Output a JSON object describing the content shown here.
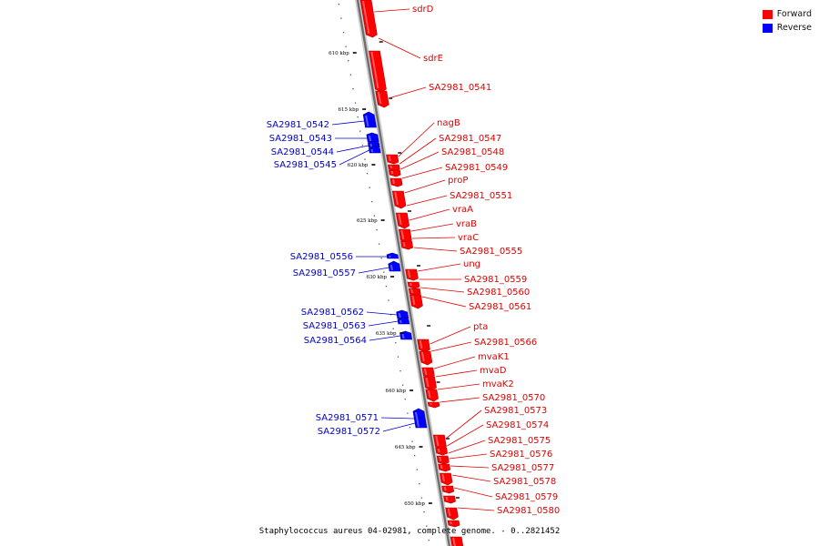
{
  "legend": {
    "forward": {
      "label": "Forward",
      "color": "#ff0000"
    },
    "reverse": {
      "label": "Reverse",
      "color": "#0000ff"
    }
  },
  "caption": "Staphylococcus aureus 04-02981, complete genome. - 0..2821452",
  "ticks": [
    "610 kbp",
    "615 kbp",
    "620 kbp",
    "625 kbp",
    "630 kbp",
    "635 kbp",
    "640 kbp",
    "645 kbp",
    "650 kbp"
  ],
  "genes_forward": [
    "sdrD",
    "sdrE",
    "SA2981_0541",
    "nagB",
    "SA2981_0547",
    "SA2981_0548",
    "SA2981_0549",
    "proP",
    "SA2981_0551",
    "vraA",
    "vraB",
    "vraC",
    "SA2981_0555",
    "ung",
    "SA2981_0559",
    "SA2981_0560",
    "SA2981_0561",
    "pta",
    "SA2981_0566",
    "mvaK1",
    "mvaD",
    "mvaK2",
    "SA2981_0570",
    "SA2981_0573",
    "SA2981_0574",
    "SA2981_0575",
    "SA2981_0576",
    "SA2981_0577",
    "SA2981_0578",
    "SA2981_0579",
    "SA2981_0580"
  ],
  "genes_reverse": [
    "SA2981_0542",
    "SA2981_0543",
    "SA2981_0544",
    "SA2981_0545",
    "SA2981_0556",
    "SA2981_0557",
    "SA2981_0562",
    "SA2981_0563",
    "SA2981_0564",
    "SA2981_0571",
    "SA2981_0572"
  ]
}
